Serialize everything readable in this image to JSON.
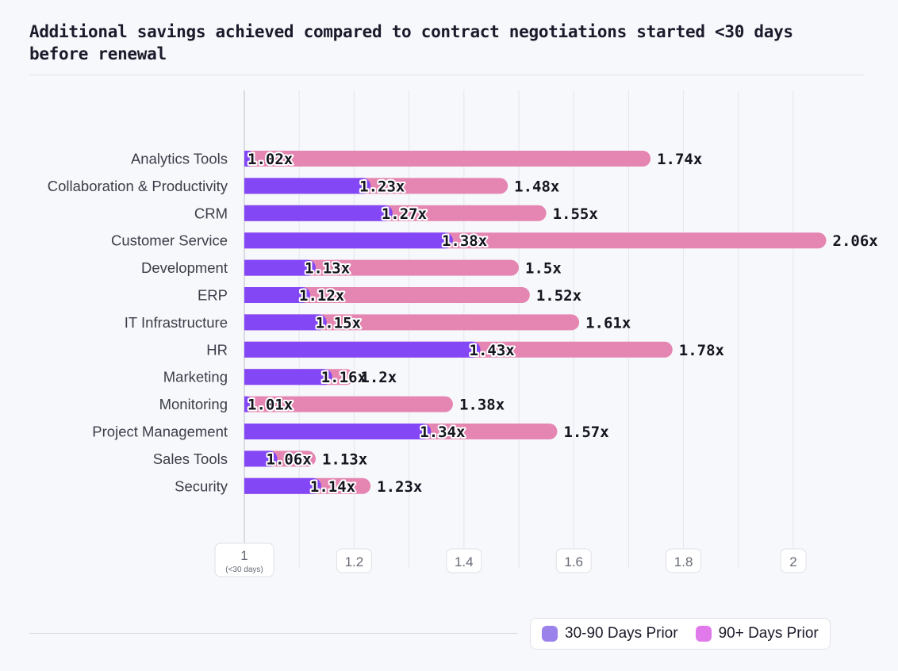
{
  "title": "Additional savings achieved compared to contract negotiations started <30 days before renewal",
  "colors": {
    "series_a": "#8447f6",
    "series_b": "#e585b1",
    "legend_a": "#9a82ea",
    "legend_b": "#e07aeb",
    "grid": "#e3e6ec",
    "tick_text": "#666a75",
    "label_text": "#3b3e48",
    "value_text": "#15151f"
  },
  "legend": {
    "series_a": "30-90 Days Prior",
    "series_b": "90+ Days Prior"
  },
  "chart_data": {
    "type": "bar",
    "orientation": "horizontal",
    "title": "Additional savings achieved compared to contract negotiations started <30 days before renewal",
    "categories": [
      "Analytics Tools",
      "Collaboration & Productivity",
      "CRM",
      "Customer Service",
      "Development",
      "ERP",
      "IT Infrastructure",
      "HR",
      "Marketing",
      "Monitoring",
      "Project Management",
      "Sales Tools",
      "Security"
    ],
    "series": [
      {
        "name": "30-90 Days Prior",
        "values": [
          1.02,
          1.23,
          1.27,
          1.38,
          1.13,
          1.12,
          1.15,
          1.43,
          1.16,
          1.01,
          1.34,
          1.06,
          1.14
        ],
        "labels": [
          "1.02x",
          "1.23x",
          "1.27x",
          "1.38x",
          "1.13x",
          "1.12x",
          "1.15x",
          "1.43x",
          "1.16x",
          "1.01x",
          "1.34x",
          "1.06x",
          "1.14x"
        ]
      },
      {
        "name": "90+ Days Prior",
        "values": [
          1.74,
          1.48,
          1.55,
          2.06,
          1.5,
          1.52,
          1.61,
          1.78,
          1.2,
          1.38,
          1.57,
          1.13,
          1.23
        ],
        "labels": [
          "1.74x",
          "1.48x",
          "1.55x",
          "2.06x",
          "1.5x",
          "1.52x",
          "1.61x",
          "1.78x",
          "1.2x",
          "1.38x",
          "1.57x",
          "1.13x",
          "1.23x"
        ]
      }
    ],
    "xlim": [
      1,
      2
    ],
    "xticks": [
      1,
      1.2,
      1.4,
      1.6,
      1.8,
      2
    ],
    "xtick_labels": [
      "1",
      "1.2",
      "1.4",
      "1.6",
      "1.8",
      "2"
    ],
    "xtick_sublabel": "(<30 days)",
    "grid": true,
    "legend_position": "bottom-right"
  }
}
